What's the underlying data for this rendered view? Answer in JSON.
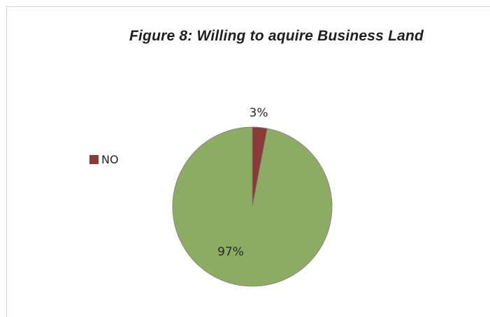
{
  "chart_data": {
    "type": "pie",
    "title": "Figure 8: Willing to aquire Business Land",
    "slices": [
      {
        "label": "NO",
        "value": 3,
        "value_label": "3%",
        "color": "#8b3a3a"
      },
      {
        "label": "",
        "value": 97,
        "value_label": "97%",
        "color": "#8cac63"
      }
    ],
    "legend": {
      "placement": "left",
      "entries": [
        {
          "label": "NO",
          "color": "#8b3a3a"
        }
      ]
    },
    "start_angle_deg": 0,
    "direction": "clockwise"
  },
  "colors": {
    "slice_stroke": "#7f7f7f"
  }
}
